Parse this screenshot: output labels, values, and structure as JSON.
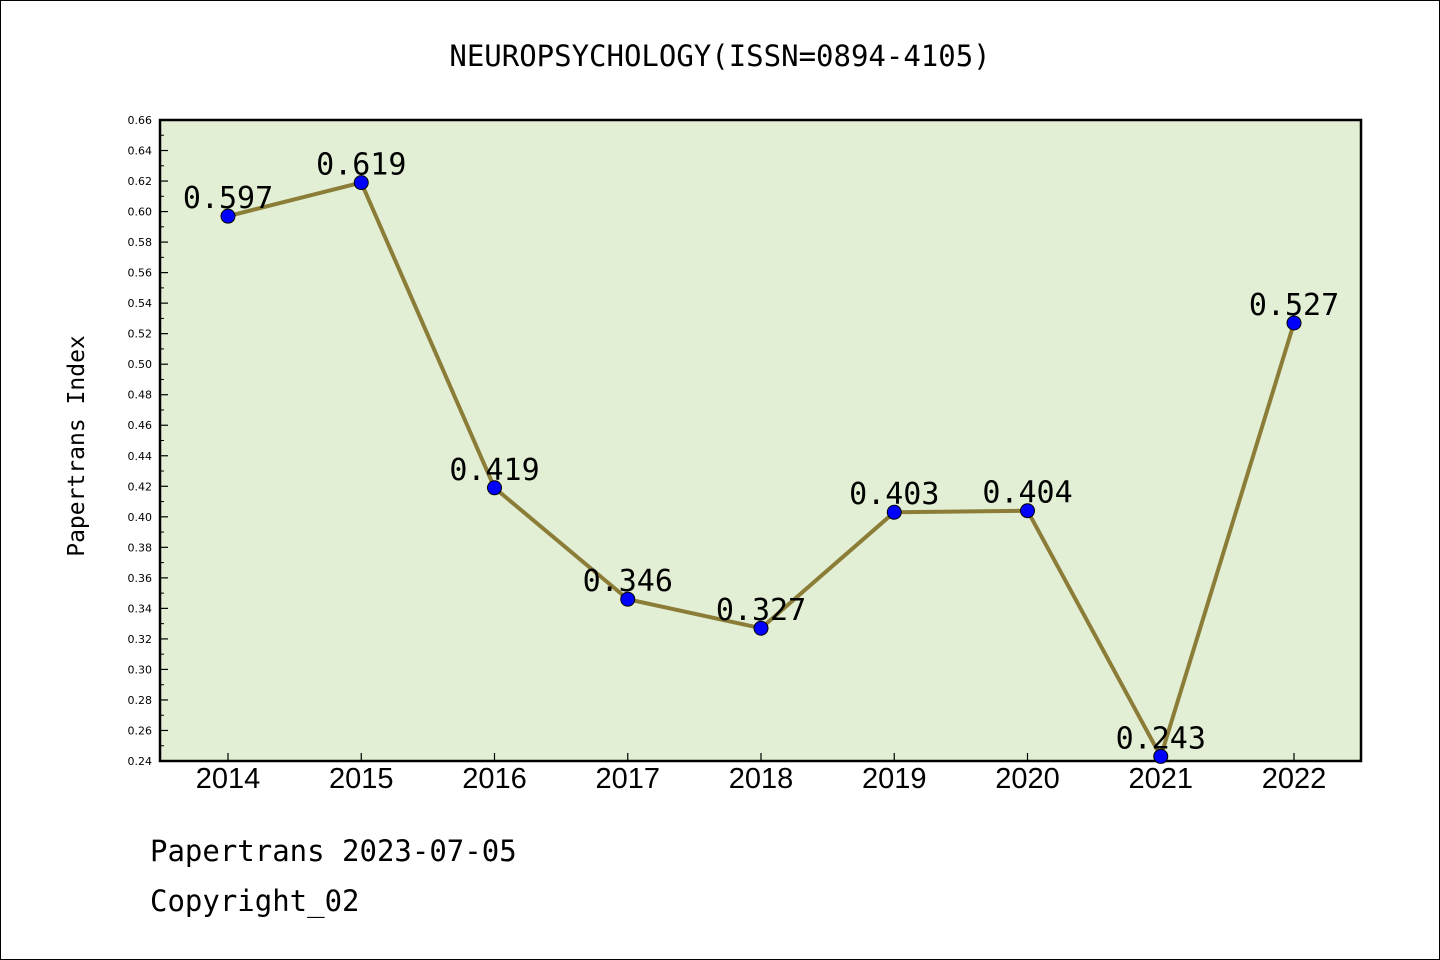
{
  "chart_data": {
    "type": "line",
    "title": "NEUROPSYCHOLOGY(ISSN=0894-4105)",
    "xlabel": "",
    "ylabel": "Papertrans Index",
    "categories": [
      "2014",
      "2015",
      "2016",
      "2017",
      "2018",
      "2019",
      "2020",
      "2021",
      "2022"
    ],
    "series": [
      {
        "values": [
          0.597,
          0.619,
          0.419,
          0.346,
          0.327,
          0.403,
          0.404,
          0.243,
          0.527
        ],
        "data_labels": [
          "0.597",
          "0.619",
          "0.419",
          "0.346",
          "0.327",
          "0.403",
          "0.404",
          "0.243",
          "0.527"
        ]
      }
    ],
    "ylim": [
      0.24,
      0.66
    ],
    "yticks": [
      "0.24",
      "0.26",
      "0.28",
      "0.30",
      "0.32",
      "0.34",
      "0.36",
      "0.38",
      "0.40",
      "0.42",
      "0.44",
      "0.46",
      "0.48",
      "0.50",
      "0.52",
      "0.54",
      "0.56",
      "0.58",
      "0.60",
      "0.62",
      "0.64",
      "0.66"
    ],
    "grid": false,
    "colors": {
      "plot_background": "#e2efd4",
      "line": "#8b7d38",
      "marker": "#0000ff"
    }
  },
  "footer": {
    "line1": "Papertrans 2023-07-05",
    "line2": "Copyright_02"
  }
}
